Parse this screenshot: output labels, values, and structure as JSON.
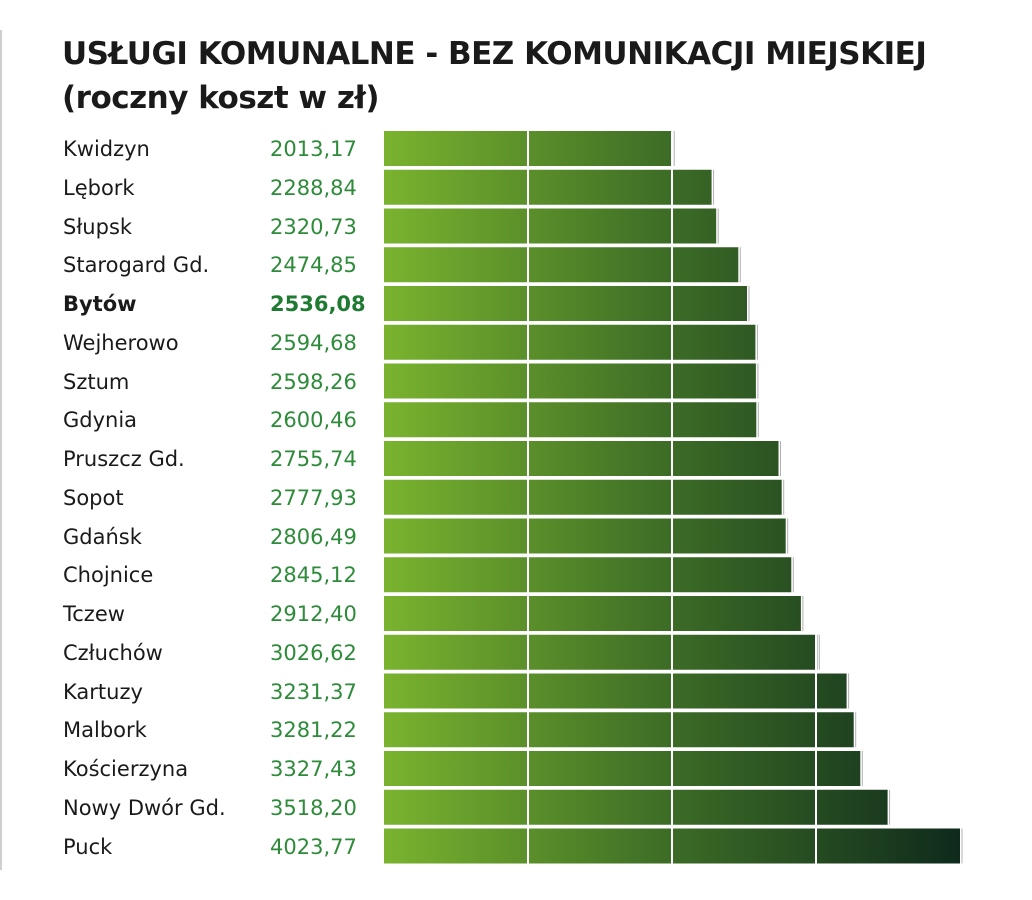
{
  "chart_data": {
    "type": "bar",
    "orientation": "horizontal",
    "title": "USŁUGI KOMUNALNE - BEZ KOMUNIKACJI MIEJSKIEJ",
    "subtitle": "(roczny koszt w zł)",
    "highlight": "Bytów",
    "categories": [
      "Kwidzyn",
      "Lębork",
      "Słupsk",
      "Starogard Gd.",
      "Bytów",
      "Wejherowo",
      "Sztum",
      "Gdynia",
      "Pruszcz Gd.",
      "Sopot",
      "Gdańsk",
      "Chojnice",
      "Tczew",
      "Człuchów",
      "Kartuzy",
      "Malbork",
      "Kościerzyna",
      "Nowy Dwór Gd.",
      "Puck"
    ],
    "value_labels": [
      "2013,17",
      "2288,84",
      "2320,73",
      "2474,85",
      "2536,08",
      "2594,68",
      "2598,26",
      "2600,46",
      "2755,74",
      "2777,93",
      "2806,49",
      "2845,12",
      "2912,40",
      "3026,62",
      "3231,37",
      "3281,22",
      "3327,43",
      "3518,20",
      "4023,77"
    ],
    "values": [
      2013.17,
      2288.84,
      2320.73,
      2474.85,
      2536.08,
      2594.68,
      2598.26,
      2600.46,
      2755.74,
      2777.93,
      2806.49,
      2845.12,
      2912.4,
      3026.62,
      3231.37,
      3281.22,
      3327.43,
      3518.2,
      4023.77
    ],
    "xlim": [
      0,
      4023.77
    ],
    "grid": true,
    "colors": {
      "bar_start": "#7ab32e",
      "bar_end": "#0e2a1c",
      "value_text": "#2e8b3a",
      "highlight_value": "#1f7a32"
    }
  }
}
